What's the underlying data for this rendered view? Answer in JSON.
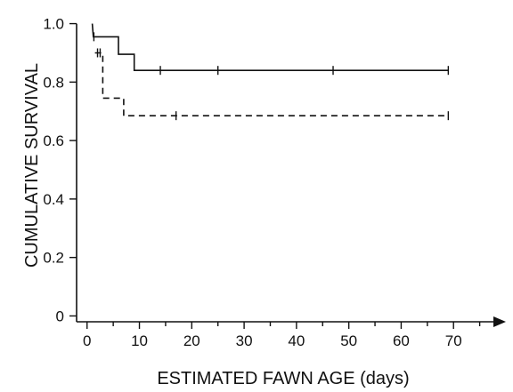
{
  "chart_data": {
    "type": "line",
    "subtype": "kaplan-meier step plot",
    "xlabel": "ESTIMATED FAWN AGE (days)",
    "ylabel": "CUMULATIVE SURVIVAL",
    "xlim": [
      -2,
      80
    ],
    "ylim": [
      -0.02,
      1.02
    ],
    "xticks": [
      0,
      10,
      20,
      30,
      40,
      50,
      60,
      70
    ],
    "yticks": [
      0,
      0.2,
      0.4,
      0.6,
      0.8,
      1.0
    ],
    "ytick_labels": [
      "0",
      "0.2",
      "0.4",
      "0.6",
      "0.8",
      "1.0"
    ],
    "x_axis_arrow": true,
    "grid": false,
    "legend": "none",
    "series": [
      {
        "style": "solid",
        "steps": [
          [
            1,
            1.0
          ],
          [
            1.2,
            0.955
          ],
          [
            6,
            0.955
          ],
          [
            6,
            0.895
          ],
          [
            9,
            0.895
          ],
          [
            9,
            0.84
          ],
          [
            69,
            0.84
          ]
        ],
        "censored": [
          [
            1.3,
            0.955
          ],
          [
            14,
            0.84
          ],
          [
            25,
            0.84
          ],
          [
            47,
            0.84
          ],
          [
            69,
            0.84
          ]
        ]
      },
      {
        "style": "dashed",
        "steps": [
          [
            1.5,
            0.9
          ],
          [
            3,
            0.9
          ],
          [
            3,
            0.745
          ],
          [
            7,
            0.745
          ],
          [
            7,
            0.685
          ],
          [
            69,
            0.685
          ]
        ],
        "censored": [
          [
            2,
            0.9
          ],
          [
            2.5,
            0.9
          ],
          [
            17,
            0.685
          ],
          [
            69,
            0.685
          ]
        ]
      }
    ]
  }
}
